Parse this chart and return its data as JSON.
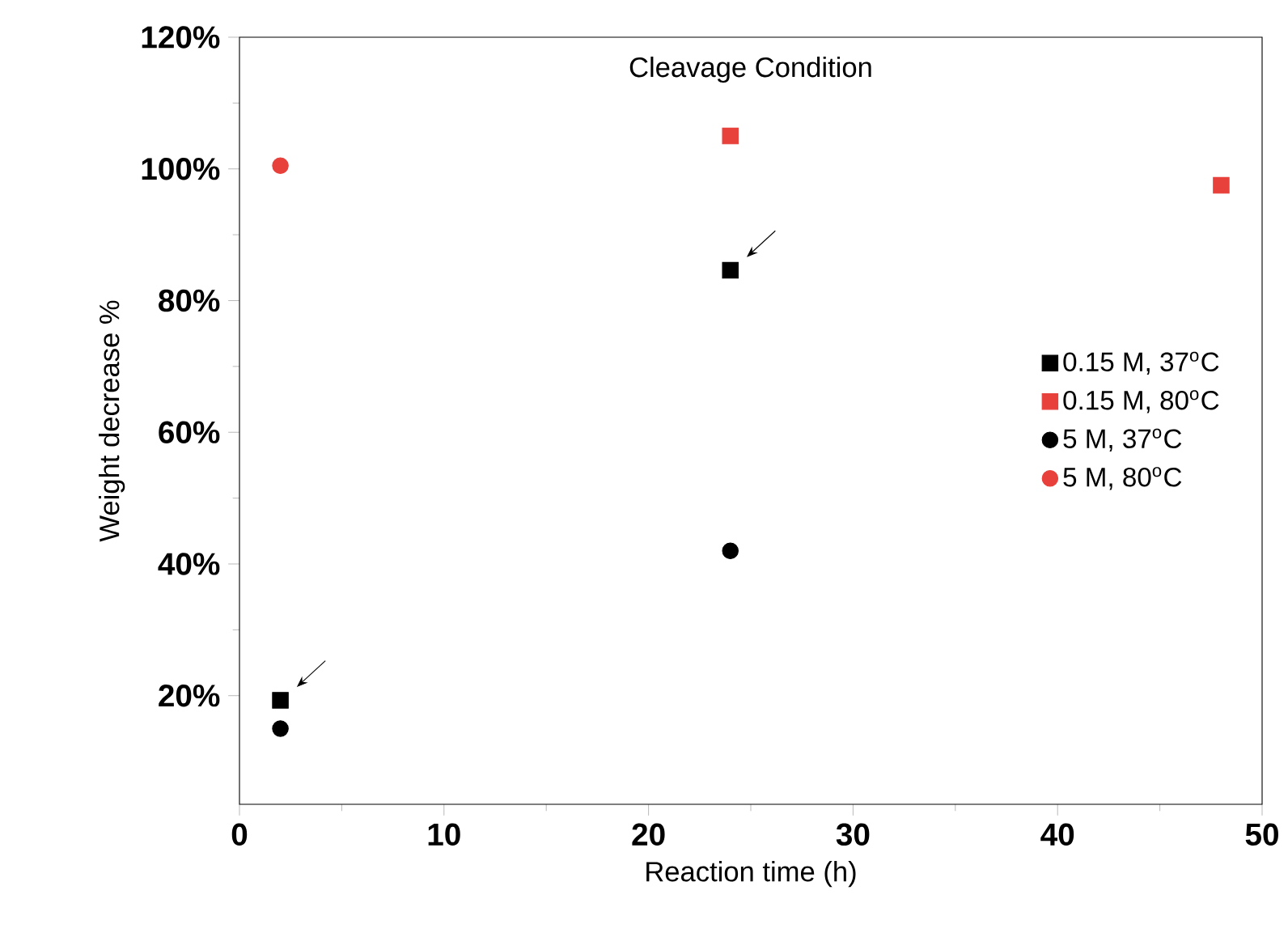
{
  "chart_data": {
    "type": "scatter",
    "title": "Cleavage Condition",
    "xlabel": "Reaction time (h)",
    "ylabel": "Weight decrease %",
    "xlim": [
      0,
      50
    ],
    "xticks": [
      0,
      10,
      20,
      30,
      40,
      50
    ],
    "ylim": [
      3.5,
      120
    ],
    "yticks": [
      {
        "value": 20,
        "label": "20%"
      },
      {
        "value": 40,
        "label": "40%"
      },
      {
        "value": 60,
        "label": "60%"
      },
      {
        "value": 80,
        "label": "80%"
      },
      {
        "value": 100,
        "label": "100%"
      },
      {
        "value": 120,
        "label": "120%"
      }
    ],
    "legend": "right",
    "grid": false,
    "series": [
      {
        "name": "0.15 M, 37$^{o}$C",
        "color": "#000000",
        "marker": "square",
        "x": [
          2,
          24
        ],
        "values": [
          19.3,
          84.6
        ]
      },
      {
        "name": "0.15 M, 80$^{o}$C",
        "color": "#e8413c",
        "marker": "square",
        "x": [
          24,
          48
        ],
        "values": [
          105,
          97.5
        ]
      },
      {
        "name": "5 M, 37$^{o}$C",
        "color": "#000000",
        "marker": "circle",
        "x": [
          2,
          24
        ],
        "values": [
          15,
          42
        ]
      },
      {
        "name": "5 M, 80$^{o}$C",
        "color": "#e8413c",
        "marker": "circle",
        "x": [
          2
        ],
        "values": [
          100.5
        ]
      }
    ]
  }
}
